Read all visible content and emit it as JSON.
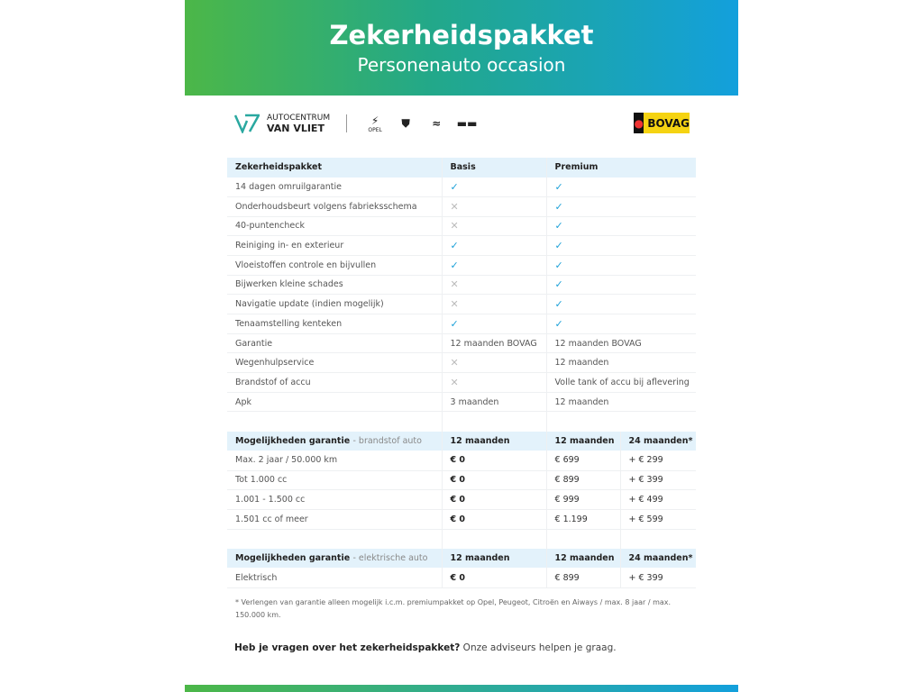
{
  "header": {
    "title": "Zekerheidspakket",
    "subtitle": "Personenauto occasion"
  },
  "logos": {
    "dealer_line1": "AUTOCENTRUM",
    "dealer_line2": "VAN VLIET",
    "brands": [
      "OPEL",
      "PEUGEOT",
      "CITROËN",
      "AIWAYS"
    ],
    "bovag": "BOVAG"
  },
  "table1": {
    "headers": [
      "Zekerheidspakket",
      "Basis",
      "Premium"
    ],
    "rows": [
      [
        "14 dagen omruilgarantie",
        "check",
        "check"
      ],
      [
        "Onderhoudsbeurt volgens fabrieksschema",
        "cross",
        "check"
      ],
      [
        "40-puntencheck",
        "cross",
        "check"
      ],
      [
        "Reiniging in- en exterieur",
        "check",
        "check"
      ],
      [
        "Vloeistoffen controle en bijvullen",
        "check",
        "check"
      ],
      [
        "Bijwerken kleine schades",
        "cross",
        "check"
      ],
      [
        "Navigatie update (indien mogelijk)",
        "cross",
        "check"
      ],
      [
        "Tenaamstelling kenteken",
        "check",
        "check"
      ],
      [
        "Garantie",
        "12 maanden BOVAG",
        "12 maanden BOVAG"
      ],
      [
        "Wegenhulpservice",
        "cross",
        "12 maanden"
      ],
      [
        "Brandstof of accu",
        "cross",
        "Volle tank of accu bij aflevering"
      ],
      [
        "Apk",
        "3 maanden",
        "12 maanden"
      ]
    ]
  },
  "table2": {
    "title": "Mogelijkheden garantie",
    "subtitle": "- brandstof auto",
    "headers": [
      "12 maanden",
      "12 maanden",
      "24 maanden*"
    ],
    "rows": [
      [
        "Max. 2 jaar / 50.000 km",
        "€ 0",
        "€ 699",
        "+ € 299"
      ],
      [
        "Tot 1.000 cc",
        "€ 0",
        "€ 899",
        "+ € 399"
      ],
      [
        "1.001 - 1.500 cc",
        "€ 0",
        "€ 999",
        "+ € 499"
      ],
      [
        "1.501 cc of meer",
        "€ 0",
        "€ 1.199",
        "+ € 599"
      ]
    ]
  },
  "table3": {
    "title": "Mogelijkheden garantie",
    "subtitle": "- elektrische auto",
    "headers": [
      "12 maanden",
      "12 maanden",
      "24 maanden*"
    ],
    "rows": [
      [
        "Elektrisch",
        "€ 0",
        "€ 899",
        "+ € 399"
      ]
    ]
  },
  "footnote": "* Verlengen van garantie alleen mogelijk i.c.m. premiumpakket op Opel, Peugeot, Citroën en Aiways / max. 8 jaar / max. 150.000 km.",
  "question": {
    "bold": "Heb je vragen over het zekerheidspakket?",
    "text": " Onze adviseurs helpen je graag."
  },
  "colors": {
    "accent": "#1ca0d8",
    "header_bg": "#e3f2fb",
    "gradient_start": "#4cb748",
    "gradient_end": "#13a0dc"
  }
}
